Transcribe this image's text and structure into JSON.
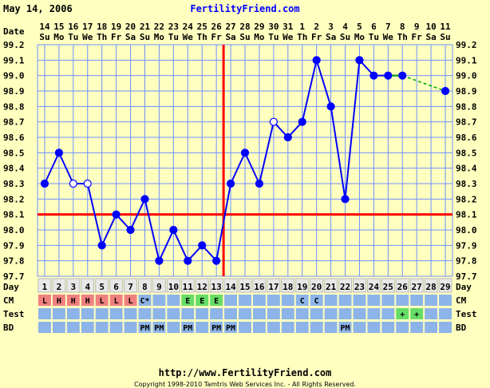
{
  "header": {
    "date": "May 14, 2006",
    "site": "FertilityFriend.com"
  },
  "footer": {
    "url": "http://www.FertilityFriend.com",
    "copyright": "Copyright 1998-2010 Tamtris Web Services Inc. - All Rights Reserved."
  },
  "labels": {
    "date": "Date",
    "day": "Day",
    "cm": "CM",
    "test": "Test",
    "bd": "BD"
  },
  "colors": {
    "background": "#ffffc0",
    "grid": "#7090ff",
    "line": "#0000ff",
    "point": "#0000ff",
    "coverline": "#ff0000",
    "ovulation": "#ff0000",
    "predicted_line": "#00aa00",
    "cm_row": "#8db4e8",
    "cm_lh_cell": "#f08080",
    "cm_e_cell": "#66dd66",
    "test_positive_cell": "#66dd66",
    "header_blue": "#0000ff"
  },
  "chart_data": {
    "type": "line",
    "title": "",
    "xlabel": "Day",
    "ylabel": "",
    "ylim": [
      97.7,
      99.2
    ],
    "y_ticks": [
      "99.2",
      "99.1",
      "99.0",
      "98.9",
      "98.8",
      "98.7",
      "98.6",
      "98.5",
      "98.4",
      "98.3",
      "98.2",
      "98.1",
      "98.0",
      "97.9",
      "97.8",
      "97.7"
    ],
    "dates_day": [
      "14",
      "15",
      "16",
      "17",
      "18",
      "19",
      "20",
      "21",
      "22",
      "23",
      "24",
      "25",
      "26",
      "27",
      "28",
      "29",
      "30",
      "31",
      "1",
      "2",
      "3",
      "4",
      "5",
      "6",
      "7",
      "8",
      "9",
      "10",
      "11"
    ],
    "dates_weekday": [
      "Su",
      "Mo",
      "Tu",
      "We",
      "Th",
      "Fr",
      "Sa",
      "Su",
      "Mo",
      "Tu",
      "We",
      "Th",
      "Fr",
      "Sa",
      "Su",
      "Mo",
      "Tu",
      "We",
      "Th",
      "Fr",
      "Sa",
      "Su",
      "Mo",
      "Tu",
      "We",
      "Th",
      "Fr",
      "Sa",
      "Su"
    ],
    "cycle_days": [
      "1",
      "2",
      "3",
      "4",
      "5",
      "6",
      "7",
      "8",
      "9",
      "10",
      "11",
      "12",
      "13",
      "14",
      "15",
      "16",
      "17",
      "18",
      "19",
      "20",
      "21",
      "22",
      "23",
      "24",
      "25",
      "26",
      "27",
      "28",
      "29"
    ],
    "temps": [
      98.3,
      98.5,
      98.3,
      98.3,
      97.9,
      98.1,
      98.0,
      98.2,
      97.8,
      98.0,
      97.8,
      97.9,
      97.8,
      98.3,
      98.5,
      98.3,
      98.7,
      98.6,
      98.7,
      99.1,
      98.8,
      98.2,
      99.1,
      99.0,
      99.0,
      99.0,
      null,
      null,
      98.9
    ],
    "open_points": [
      3,
      4,
      17
    ],
    "predicted_from_day": 26,
    "predicted_to_day": 29,
    "coverline": 98.1,
    "ovulation_day": 13,
    "cm": [
      "L",
      "H",
      "H",
      "H",
      "L",
      "L",
      "L",
      "C*",
      "",
      "",
      "E",
      "E",
      "E",
      "",
      "",
      "",
      "",
      "",
      "C",
      "C",
      "",
      "",
      "",
      "",
      "",
      "",
      "",
      "",
      ""
    ],
    "test": [
      "",
      "",
      "",
      "",
      "",
      "",
      "",
      "",
      "",
      "",
      "",
      "",
      "",
      "",
      "",
      "",
      "",
      "",
      "",
      "",
      "",
      "",
      "",
      "",
      "",
      "+",
      "+",
      "",
      ""
    ],
    "bd": [
      "",
      "",
      "",
      "",
      "",
      "",
      "",
      "PM",
      "PM",
      "",
      "PM",
      "",
      "PM",
      "PM",
      "",
      "",
      "",
      "",
      "",
      "",
      "",
      "PM",
      "",
      "",
      "",
      "",
      "",
      "",
      ""
    ]
  }
}
